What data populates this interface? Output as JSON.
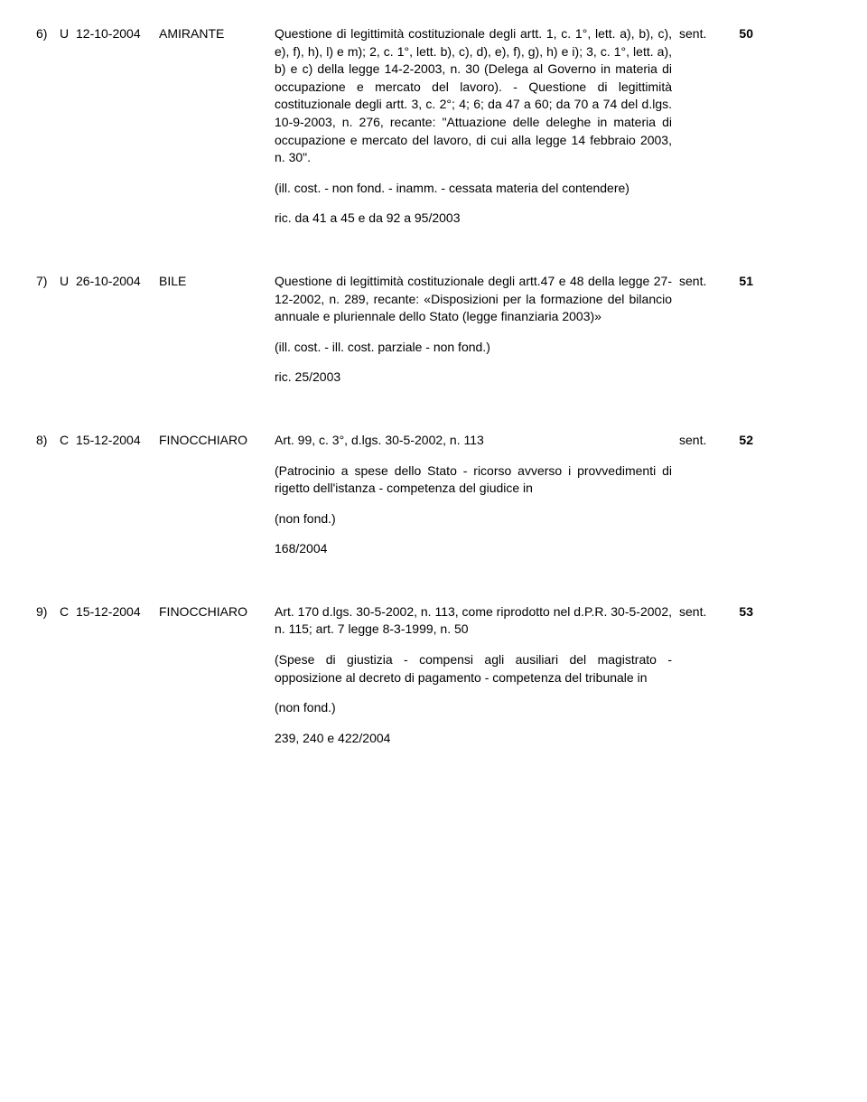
{
  "entries": [
    {
      "num": "6)",
      "type": "U",
      "date": "12-10-2004",
      "author": "AMIRANTE",
      "para1": "Questione di legittimità costituzionale degli artt. 1, c. 1°, lett. a), b), c), e), f), h), l) e m); 2, c. 1°, lett. b), c), d), e), f), g), h) e i); 3, c. 1°, lett. a), b) e c) della legge 14-2-2003, n. 30 (Delega al Governo in materia di occupazione e mercato del lavoro). - Questione di legittimità costituzionale degli artt. 3, c. 2°; 4; 6; da 47 a 60; da 70 a 74 del d.lgs. 10-9-2003, n. 276, recante: \"Attuazione delle deleghe in materia di occupazione e mercato del lavoro, di cui alla legge 14 febbraio 2003, n. 30\".",
      "para2": "(ill. cost. - non fond. - inamm. - cessata materia del contendere)",
      "para3": "ric. da 41 a 45 e da 92 a 95/2003",
      "sent": "sent.",
      "sentnum": "50"
    },
    {
      "num": "7)",
      "type": "U",
      "date": "26-10-2004",
      "author": "BILE",
      "para1": "Questione di legittimità costituzionale degli artt.47 e 48 della legge 27-12-2002, n. 289, recante: «Disposizioni per la formazione del bilancio annuale e pluriennale dello Stato (legge finanziaria 2003)»",
      "para2": "(ill. cost. - ill. cost. parziale - non fond.)",
      "para3": "ric. 25/2003",
      "sent": "sent.",
      "sentnum": "51"
    },
    {
      "num": "8)",
      "type": "C",
      "date": "15-12-2004",
      "author": "FINOCCHIARO",
      "para1": "Art. 99, c. 3°, d.lgs. 30-5-2002, n. 113",
      "para2": "(Patrocinio a spese dello Stato - ricorso avverso i provvedimenti di rigetto dell'istanza - competenza del giudice in",
      "para3": "(non fond.)",
      "para4": "168/2004",
      "sent": "sent.",
      "sentnum": "52"
    },
    {
      "num": "9)",
      "type": "C",
      "date": "15-12-2004",
      "author": "FINOCCHIARO",
      "para1": "Art. 170 d.lgs. 30-5-2002, n. 113, come riprodotto nel d.P.R. 30-5-2002, n. 115; art. 7 legge 8-3-1999, n. 50",
      "para2": "(Spese di giustizia - compensi agli ausiliari del magistrato - opposizione al decreto di pagamento - competenza del tribunale in",
      "para3": "(non fond.)",
      "para4": "239, 240 e 422/2004",
      "sent": "sent.",
      "sentnum": "53"
    }
  ]
}
